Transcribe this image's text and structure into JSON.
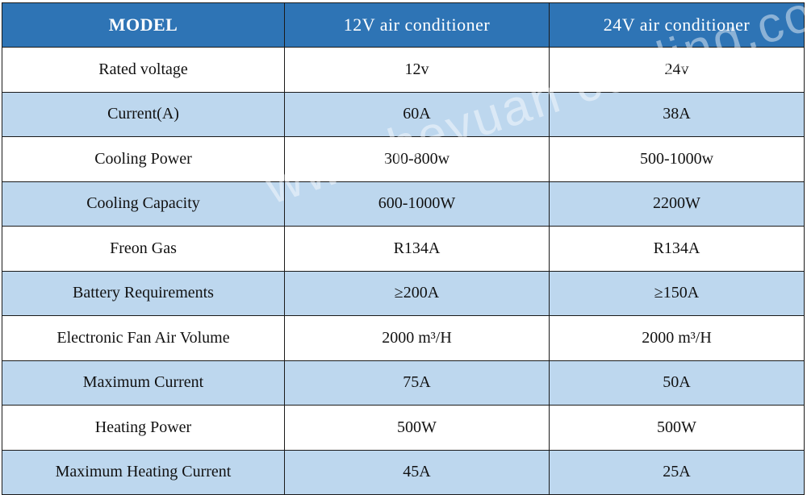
{
  "table": {
    "headers": [
      "MODEL",
      "12V air conditioner",
      "24V air conditioner"
    ],
    "rows": [
      [
        "Rated voltage",
        "12v",
        "24v"
      ],
      [
        "Current(A)",
        "60A",
        "38A"
      ],
      [
        "Cooling Power",
        "300-800w",
        "500-1000w"
      ],
      [
        "Cooling Capacity",
        "600-1000W",
        "2200W"
      ],
      [
        "Freon Gas",
        "R134A",
        "R134A"
      ],
      [
        "Battery Requirements",
        "≥200A",
        "≥150A"
      ],
      [
        "Electronic Fan Air Volume",
        "2000 m³/H",
        "2000 m³/H"
      ],
      [
        "Maximum Current",
        "75A",
        "50A"
      ],
      [
        "Heating Power",
        "500W",
        "500W"
      ],
      [
        "Maximum Heating Current",
        "45A",
        "25A"
      ]
    ]
  },
  "watermark": "www.heyuan cooling.com",
  "colors": {
    "header_bg": "#2e74b5",
    "header_text": "#ffffff",
    "stripe_bg": "#bdd7ee",
    "row_bg": "#ffffff",
    "border": "#1a1a1a"
  }
}
